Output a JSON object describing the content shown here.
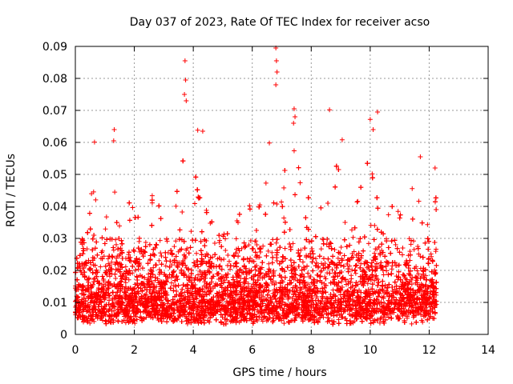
{
  "chart_data": {
    "type": "scatter",
    "title": "Day 037 of 2023, Rate Of TEC Index for receiver acso",
    "xlabel": "GPS time / hours",
    "ylabel": "ROTI / TECUs",
    "xlim": [
      0,
      14
    ],
    "ylim": [
      0,
      0.09
    ],
    "xticks": [
      0,
      2,
      4,
      6,
      8,
      10,
      12,
      14
    ],
    "yticks": [
      0,
      0.01,
      0.02,
      0.03,
      0.04,
      0.05,
      0.06,
      0.07,
      0.08,
      0.09
    ],
    "xtick_labels": [
      "0",
      "2",
      "4",
      "6",
      "8",
      "10",
      "12",
      "14"
    ],
    "ytick_labels": [
      "0",
      "0.01",
      "0.02",
      "0.03",
      "0.04",
      "0.05",
      "0.06",
      "0.07",
      "0.08",
      "0.09"
    ],
    "grid": true,
    "marker": "+",
    "color": "#ff0000",
    "data_extent_x": [
      0,
      12.25
    ],
    "approx_point_count": 9000,
    "notable_points": [
      {
        "x": 3.72,
        "y": 0.0855
      },
      {
        "x": 3.74,
        "y": 0.0795
      },
      {
        "x": 3.7,
        "y": 0.075
      },
      {
        "x": 3.76,
        "y": 0.073
      },
      {
        "x": 6.8,
        "y": 0.0895
      },
      {
        "x": 6.82,
        "y": 0.0855
      },
      {
        "x": 6.84,
        "y": 0.082
      },
      {
        "x": 6.8,
        "y": 0.078
      },
      {
        "x": 7.42,
        "y": 0.0705
      },
      {
        "x": 7.45,
        "y": 0.068
      },
      {
        "x": 7.4,
        "y": 0.066
      },
      {
        "x": 8.62,
        "y": 0.0702
      },
      {
        "x": 10.25,
        "y": 0.0695
      },
      {
        "x": 10.0,
        "y": 0.0672
      },
      {
        "x": 10.1,
        "y": 0.064
      },
      {
        "x": 1.32,
        "y": 0.064
      },
      {
        "x": 1.3,
        "y": 0.0605
      },
      {
        "x": 0.65,
        "y": 0.0601
      },
      {
        "x": 4.32,
        "y": 0.0635
      },
      {
        "x": 4.15,
        "y": 0.0638
      },
      {
        "x": 6.58,
        "y": 0.0598
      },
      {
        "x": 9.05,
        "y": 0.0608
      },
      {
        "x": 11.7,
        "y": 0.0555
      },
      {
        "x": 12.2,
        "y": 0.052
      }
    ],
    "envelope_peaks": [
      {
        "x": 0.0,
        "y": 0.036
      },
      {
        "x": 0.3,
        "y": 0.032
      },
      {
        "x": 0.65,
        "y": 0.05
      },
      {
        "x": 1.0,
        "y": 0.034
      },
      {
        "x": 1.3,
        "y": 0.055
      },
      {
        "x": 1.6,
        "y": 0.034
      },
      {
        "x": 1.9,
        "y": 0.046
      },
      {
        "x": 2.3,
        "y": 0.036
      },
      {
        "x": 2.8,
        "y": 0.048
      },
      {
        "x": 3.2,
        "y": 0.04
      },
      {
        "x": 3.7,
        "y": 0.062
      },
      {
        "x": 4.1,
        "y": 0.05
      },
      {
        "x": 4.5,
        "y": 0.04
      },
      {
        "x": 5.0,
        "y": 0.036
      },
      {
        "x": 5.5,
        "y": 0.04
      },
      {
        "x": 6.0,
        "y": 0.043
      },
      {
        "x": 6.6,
        "y": 0.055
      },
      {
        "x": 6.9,
        "y": 0.05
      },
      {
        "x": 7.4,
        "y": 0.06
      },
      {
        "x": 7.8,
        "y": 0.044
      },
      {
        "x": 8.3,
        "y": 0.04
      },
      {
        "x": 8.7,
        "y": 0.053
      },
      {
        "x": 9.1,
        "y": 0.054
      },
      {
        "x": 9.6,
        "y": 0.048
      },
      {
        "x": 10.1,
        "y": 0.058
      },
      {
        "x": 10.5,
        "y": 0.046
      },
      {
        "x": 11.0,
        "y": 0.044
      },
      {
        "x": 11.5,
        "y": 0.048
      },
      {
        "x": 11.9,
        "y": 0.036
      },
      {
        "x": 12.2,
        "y": 0.045
      }
    ]
  }
}
